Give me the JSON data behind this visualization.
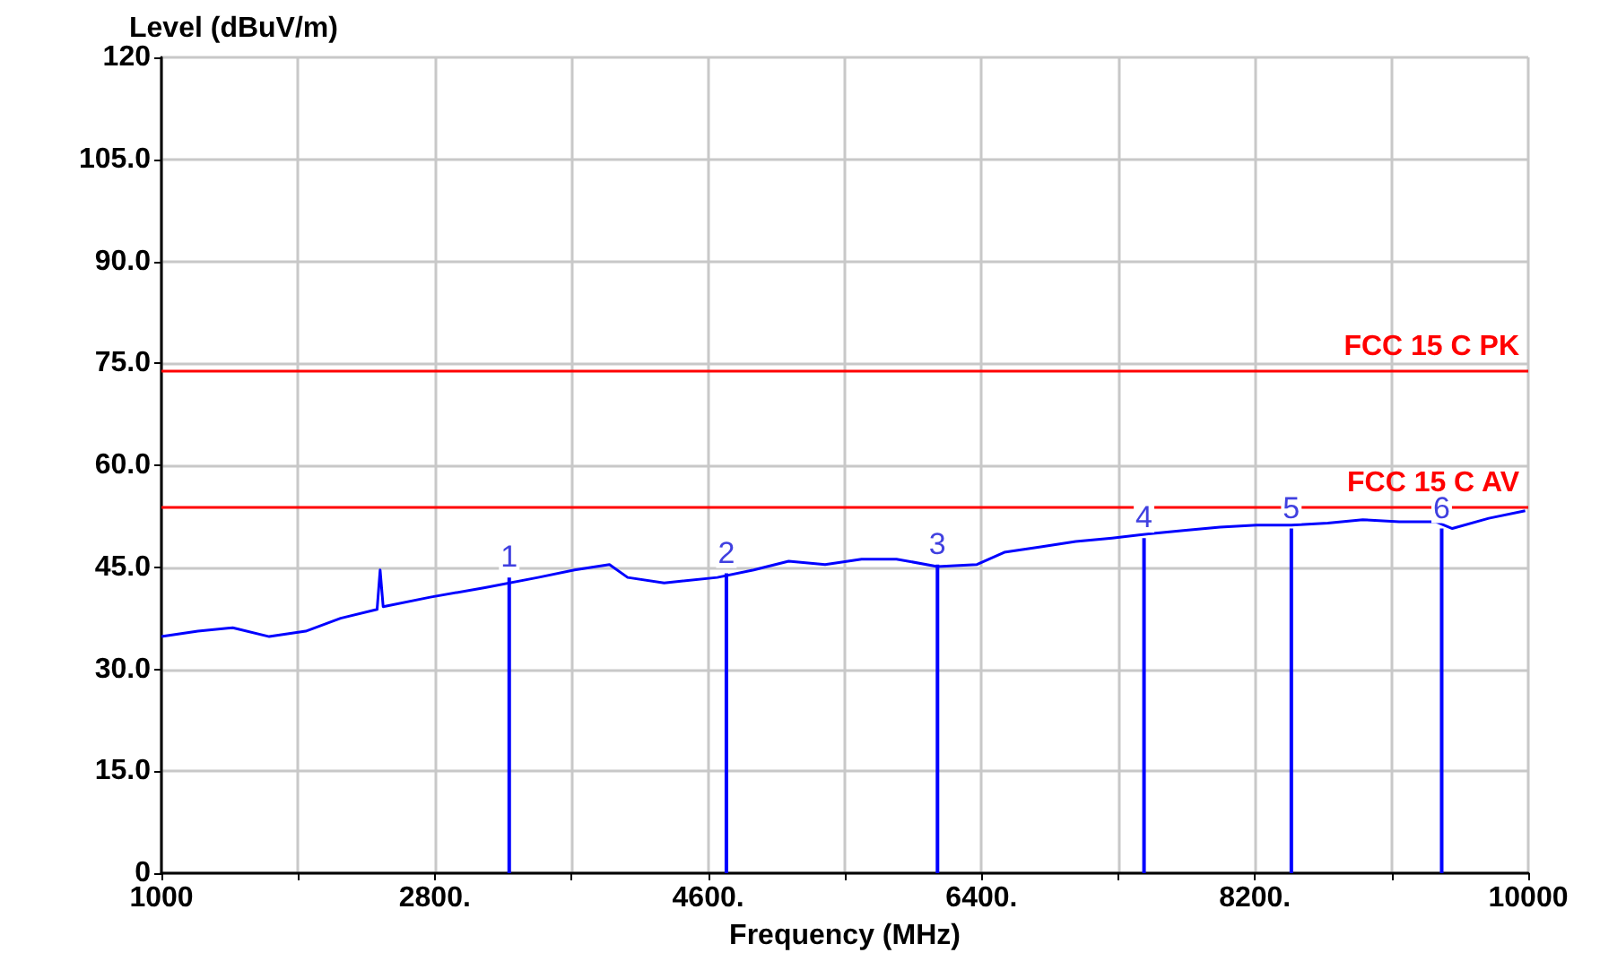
{
  "chart_data": {
    "type": "line",
    "xlabel": "Frequency (MHz)",
    "ylabel": "Level (dBuV/m)",
    "xlim": [
      1000,
      10000
    ],
    "ylim": [
      0,
      120
    ],
    "xticks": [
      1000,
      {
        "value": 1900,
        "label": null
      },
      {
        "value": 2800,
        "label": "2800."
      },
      {
        "value": 3700,
        "label": null
      },
      {
        "value": 4600,
        "label": "4600."
      },
      {
        "value": 5500,
        "label": null
      },
      {
        "value": 6400,
        "label": "6400."
      },
      {
        "value": 7300,
        "label": null
      },
      {
        "value": 8200,
        "label": "8200."
      },
      {
        "value": 9100,
        "label": null
      },
      10000
    ],
    "yticks": [
      0,
      {
        "value": 15,
        "label": "15.0"
      },
      {
        "value": 30,
        "label": "30.0"
      },
      {
        "value": 45,
        "label": "45.0"
      },
      {
        "value": 60,
        "label": "60.0"
      },
      {
        "value": 75,
        "label": "75.0"
      },
      {
        "value": 90,
        "label": "90.0"
      },
      {
        "value": 105,
        "label": "105.0"
      },
      120
    ],
    "grid": true,
    "marker": "none",
    "line_style": "solid",
    "series": [
      {
        "color": "#0000ff",
        "x": [
          1000,
          1240,
          1470,
          1710,
          1950,
          2180,
          2420,
          2440,
          2460,
          2770,
          3130,
          3480,
          3720,
          3950,
          4070,
          4310,
          4660,
          4900,
          5130,
          5370,
          5610,
          5840,
          6110,
          6370,
          6550,
          6790,
          7020,
          7260,
          7500,
          7730,
          7970,
          8210,
          8440,
          8680,
          8910,
          9150,
          9390,
          9500,
          9740,
          9980
        ],
        "values": [
          34.8,
          35.6,
          36.1,
          34.8,
          35.6,
          37.5,
          38.8,
          44.6,
          39.2,
          40.6,
          42.0,
          43.5,
          44.6,
          45.4,
          43.5,
          42.7,
          43.5,
          44.6,
          45.9,
          45.4,
          46.2,
          46.2,
          45.1,
          45.4,
          47.2,
          48.0,
          48.8,
          49.3,
          49.9,
          50.4,
          50.9,
          51.2,
          51.2,
          51.5,
          52.0,
          51.7,
          51.7,
          50.7,
          52.2,
          53.3
        ]
      },
      {
        "type": "bar",
        "color": "#0000ff",
        "x": [
          3290,
          4720,
          6110,
          7470,
          8440,
          9430
        ],
        "values": [
          43.5,
          44.1,
          45.4,
          49.3,
          50.7,
          50.7
        ]
      }
    ],
    "annotations": [
      {
        "text": "1",
        "x": 3290,
        "y": 43.5
      },
      {
        "text": "2",
        "x": 4720,
        "y": 44.1
      },
      {
        "text": "3",
        "x": 6110,
        "y": 45.4
      },
      {
        "text": "4",
        "x": 7470,
        "y": 49.3
      },
      {
        "text": "5",
        "x": 8440,
        "y": 50.7
      },
      {
        "text": "6",
        "x": 9430,
        "y": 50.7
      }
    ],
    "ref_lines": [
      {
        "axis": "y",
        "value": 74,
        "label": "FCC 15 C PK",
        "color": "#ff0000"
      },
      {
        "axis": "y",
        "value": 54,
        "label": "FCC 15 C AV",
        "color": "#ff0000"
      }
    ]
  }
}
